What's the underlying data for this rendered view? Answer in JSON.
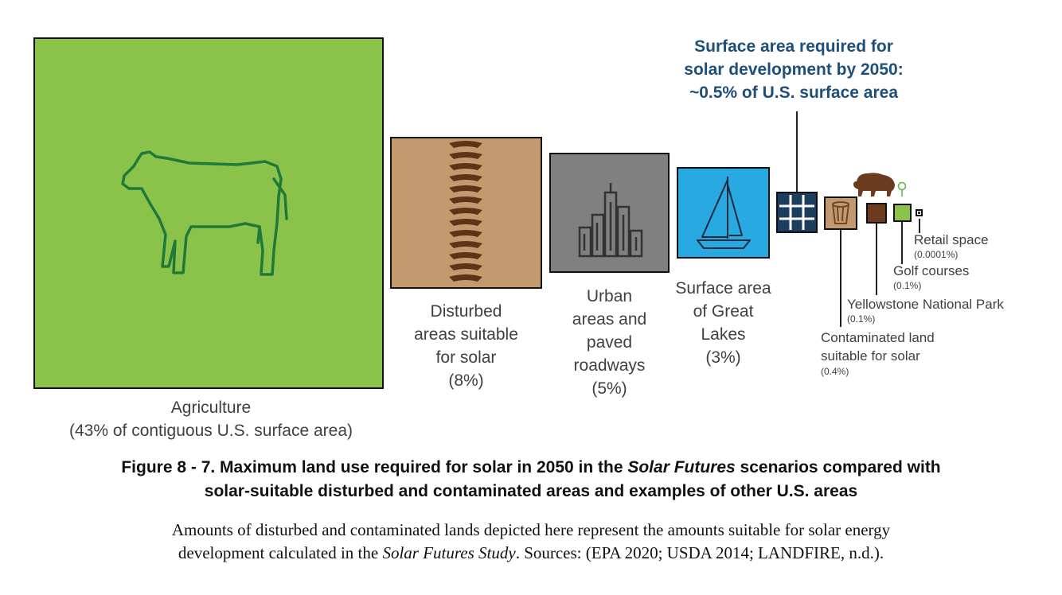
{
  "headline": {
    "lines": [
      "Surface area required for",
      "solar development by 2050:",
      "~0.5% of U.S. surface area"
    ]
  },
  "items": {
    "agriculture": {
      "name": "Agriculture",
      "detail": "(43% of contiguous U.S. surface area)",
      "color": "#8bc34a",
      "icon": "cow-icon"
    },
    "disturbed": {
      "lines": [
        "Disturbed",
        "areas suitable",
        "for solar",
        "(8%)"
      ],
      "color": "#c29a6e",
      "icon": "tire-track-icon"
    },
    "urban": {
      "lines": [
        "Urban",
        "areas and",
        "paved",
        "roadways",
        "(5%)"
      ],
      "color": "#808080",
      "icon": "city-skyline-icon"
    },
    "great_lakes": {
      "lines": [
        "Surface area",
        "of Great",
        "Lakes",
        "(3%)"
      ],
      "color": "#29a9e1",
      "icon": "sailboat-icon"
    },
    "solar": {
      "color": "#1b3e5e",
      "icon": "solar-panel-icon"
    },
    "contaminated": {
      "name_lines": [
        "Contaminated land",
        "suitable for solar"
      ],
      "pct": "(0.4%)",
      "color": "#c29a6e",
      "icon": "trash-can-icon"
    },
    "yellowstone": {
      "name": "Yellowstone National Park",
      "pct": "(0.1%)",
      "color": "#6b3a1f",
      "icon": "bison-icon"
    },
    "golf": {
      "name": "Golf courses",
      "pct": "(0.1%)",
      "color": "#8bc34a",
      "icon": "golf-flag-icon"
    },
    "retail": {
      "name": "Retail space",
      "pct": "(0.0001%)",
      "color": "#333333"
    }
  },
  "figure_title": {
    "part1": "Figure 8 - 7. Maximum land use required for solar in 2050 in the ",
    "italic": "Solar Futures",
    "part2": " scenarios compared with",
    "line2": "solar-suitable disturbed and contaminated areas and examples of other U.S. areas"
  },
  "caption": {
    "part1": "Amounts of disturbed and contaminated lands depicted here represent the amounts suitable for solar energy",
    "part2": "development calculated in the ",
    "italic": "Solar Futures Study",
    "part3": ". Sources: (EPA 2020; USDA 2014; LANDFIRE, n.d.)."
  }
}
